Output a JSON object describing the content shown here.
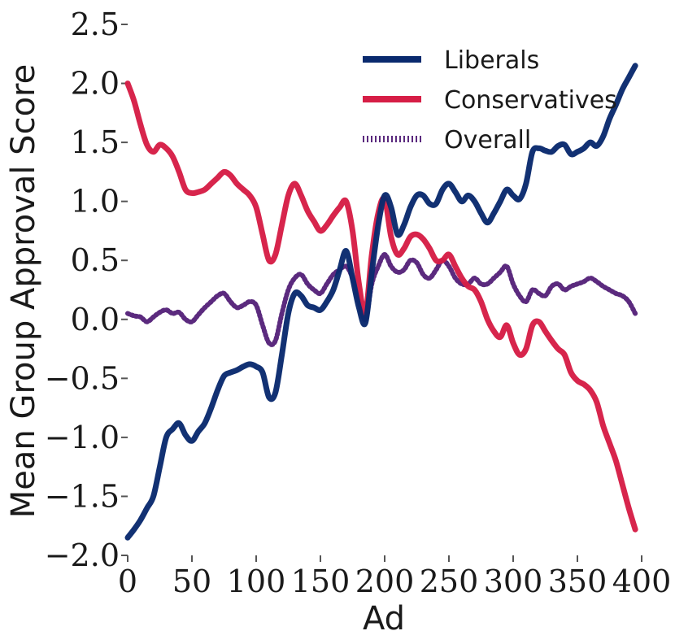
{
  "chart_data": {
    "type": "line",
    "xlabel": "Ad",
    "ylabel": "Mean Group Approval Score",
    "xlim": [
      0,
      400
    ],
    "ylim": [
      -2.0,
      2.5
    ],
    "grid": false,
    "legend_position": "top-right",
    "x_ticks": [
      0,
      50,
      100,
      150,
      200,
      250,
      300,
      350,
      400
    ],
    "x_tick_labels": [
      "0",
      "50",
      "100",
      "150",
      "200",
      "250",
      "300",
      "350",
      "400"
    ],
    "y_ticks": [
      -2.0,
      -1.5,
      -1.0,
      -0.5,
      0.0,
      0.5,
      1.0,
      1.5,
      2.0,
      2.5
    ],
    "y_tick_labels": [
      "−2.0",
      "−1.5",
      "−1.0",
      "−0.5",
      "0.0",
      "0.5",
      "1.0",
      "1.5",
      "2.0",
      "2.5"
    ],
    "series": [
      {
        "name": "Liberals",
        "color": "#0a2a6e",
        "style": "solid",
        "x": [
          0,
          5,
          10,
          15,
          20,
          25,
          30,
          35,
          40,
          45,
          50,
          55,
          60,
          65,
          70,
          75,
          80,
          85,
          90,
          95,
          100,
          105,
          110,
          115,
          120,
          125,
          130,
          135,
          140,
          145,
          150,
          155,
          160,
          165,
          170,
          175,
          180,
          185,
          190,
          195,
          200,
          205,
          210,
          215,
          220,
          225,
          230,
          235,
          240,
          245,
          250,
          255,
          260,
          265,
          270,
          275,
          280,
          285,
          290,
          295,
          300,
          305,
          310,
          315,
          320,
          325,
          330,
          335,
          340,
          345,
          350,
          355,
          360,
          365,
          370,
          375,
          380,
          385,
          390,
          395
        ],
        "values": [
          -1.85,
          -1.78,
          -1.7,
          -1.6,
          -1.5,
          -1.25,
          -1.0,
          -0.93,
          -0.88,
          -0.98,
          -1.03,
          -0.95,
          -0.88,
          -0.75,
          -0.6,
          -0.48,
          -0.45,
          -0.43,
          -0.4,
          -0.38,
          -0.4,
          -0.45,
          -0.66,
          -0.62,
          -0.3,
          0.05,
          0.22,
          0.2,
          0.12,
          0.1,
          0.08,
          0.15,
          0.25,
          0.42,
          0.58,
          0.35,
          0.1,
          -0.03,
          0.4,
          0.8,
          1.05,
          0.95,
          0.72,
          0.8,
          0.95,
          1.05,
          1.05,
          0.98,
          0.98,
          1.1,
          1.15,
          1.08,
          1.0,
          1.05,
          1.0,
          0.9,
          0.82,
          0.9,
          1.0,
          1.1,
          1.05,
          1.02,
          1.15,
          1.42,
          1.45,
          1.43,
          1.42,
          1.47,
          1.48,
          1.4,
          1.42,
          1.45,
          1.5,
          1.47,
          1.55,
          1.7,
          1.82,
          1.95,
          2.05,
          2.15
        ]
      },
      {
        "name": "Conservatives",
        "color": "#d61e46",
        "style": "solid",
        "x": [
          0,
          5,
          10,
          15,
          20,
          25,
          30,
          35,
          40,
          45,
          50,
          55,
          60,
          65,
          70,
          75,
          80,
          85,
          90,
          95,
          100,
          105,
          110,
          115,
          120,
          125,
          130,
          135,
          140,
          145,
          150,
          155,
          160,
          165,
          170,
          175,
          180,
          185,
          190,
          195,
          200,
          205,
          210,
          215,
          220,
          225,
          230,
          235,
          240,
          245,
          250,
          255,
          260,
          265,
          270,
          275,
          280,
          285,
          290,
          295,
          300,
          305,
          310,
          315,
          320,
          325,
          330,
          335,
          340,
          345,
          350,
          355,
          360,
          365,
          370,
          375,
          380,
          385,
          390,
          395
        ],
        "values": [
          2.0,
          1.85,
          1.65,
          1.48,
          1.42,
          1.48,
          1.45,
          1.38,
          1.25,
          1.1,
          1.07,
          1.08,
          1.1,
          1.15,
          1.2,
          1.25,
          1.22,
          1.15,
          1.1,
          1.05,
          0.95,
          0.72,
          0.5,
          0.55,
          0.8,
          1.05,
          1.15,
          1.05,
          0.92,
          0.83,
          0.75,
          0.8,
          0.88,
          0.95,
          1.0,
          0.75,
          0.3,
          0.05,
          0.55,
          0.9,
          1.02,
          0.7,
          0.55,
          0.6,
          0.7,
          0.72,
          0.68,
          0.6,
          0.5,
          0.5,
          0.55,
          0.45,
          0.35,
          0.28,
          0.25,
          0.15,
          0.0,
          -0.1,
          -0.15,
          -0.05,
          -0.2,
          -0.3,
          -0.25,
          -0.05,
          -0.02,
          -0.1,
          -0.18,
          -0.25,
          -0.3,
          -0.45,
          -0.52,
          -0.55,
          -0.6,
          -0.7,
          -0.9,
          -1.05,
          -1.2,
          -1.4,
          -1.6,
          -1.78
        ]
      },
      {
        "name": "Overall",
        "color": "#5b2a7e",
        "style": "dotted",
        "x": [
          0,
          5,
          10,
          15,
          20,
          25,
          30,
          35,
          40,
          45,
          50,
          55,
          60,
          65,
          70,
          75,
          80,
          85,
          90,
          95,
          100,
          105,
          110,
          115,
          120,
          125,
          130,
          135,
          140,
          145,
          150,
          155,
          160,
          165,
          170,
          175,
          180,
          185,
          190,
          195,
          200,
          205,
          210,
          215,
          220,
          225,
          230,
          235,
          240,
          245,
          250,
          255,
          260,
          265,
          270,
          275,
          280,
          285,
          290,
          295,
          300,
          305,
          310,
          315,
          320,
          325,
          330,
          335,
          340,
          345,
          350,
          355,
          360,
          365,
          370,
          375,
          380,
          385,
          390,
          395
        ],
        "values": [
          0.05,
          0.03,
          0.02,
          -0.02,
          0.02,
          0.06,
          0.08,
          0.05,
          0.06,
          0.0,
          -0.02,
          0.04,
          0.1,
          0.15,
          0.2,
          0.22,
          0.15,
          0.1,
          0.12,
          0.15,
          0.12,
          -0.05,
          -0.2,
          -0.18,
          0.05,
          0.25,
          0.35,
          0.38,
          0.3,
          0.25,
          0.22,
          0.3,
          0.38,
          0.42,
          0.45,
          0.35,
          0.15,
          0.0,
          0.3,
          0.45,
          0.55,
          0.45,
          0.4,
          0.42,
          0.5,
          0.48,
          0.38,
          0.35,
          0.42,
          0.5,
          0.45,
          0.35,
          0.3,
          0.3,
          0.35,
          0.3,
          0.3,
          0.35,
          0.4,
          0.45,
          0.3,
          0.2,
          0.15,
          0.25,
          0.22,
          0.2,
          0.28,
          0.3,
          0.25,
          0.28,
          0.3,
          0.32,
          0.35,
          0.32,
          0.28,
          0.25,
          0.22,
          0.2,
          0.15,
          0.05
        ]
      }
    ]
  }
}
